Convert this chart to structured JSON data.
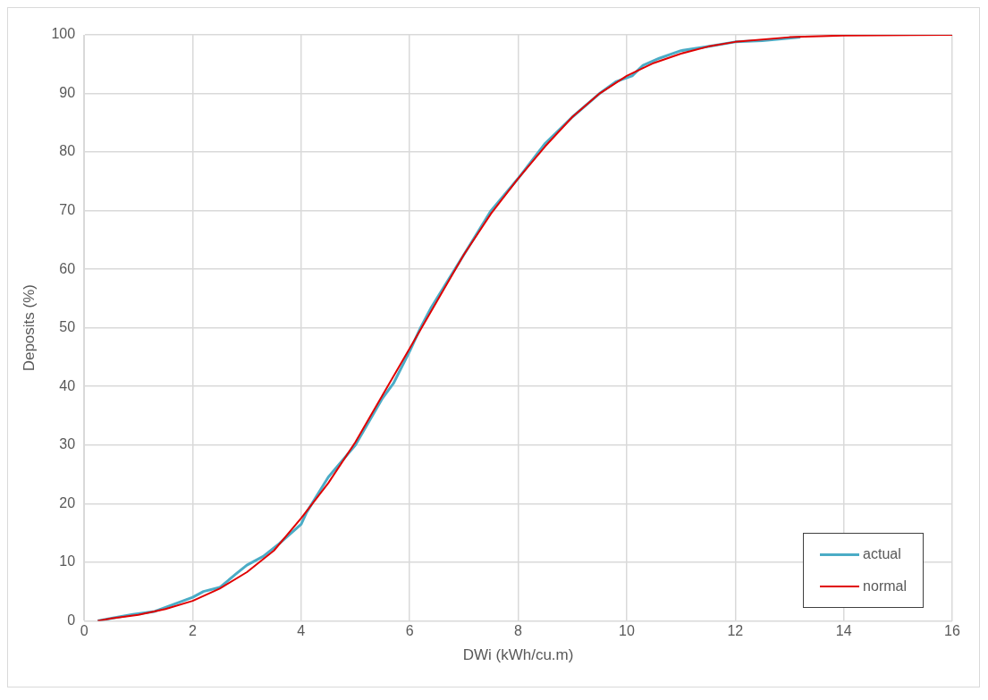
{
  "chart_data": {
    "type": "line",
    "xlabel": "DWi (kWh/cu.m)",
    "ylabel": "Deposits (%)",
    "xlim": [
      0,
      16
    ],
    "xticks": [
      0,
      2,
      4,
      6,
      8,
      10,
      12,
      14,
      16
    ],
    "ylim": [
      0,
      100
    ],
    "yticks": [
      0,
      10,
      20,
      30,
      40,
      50,
      60,
      70,
      80,
      90,
      100
    ],
    "grid": true,
    "legend": "bottom right",
    "marker": "none",
    "line_style": "solid",
    "series": [
      {
        "name": "actual",
        "color": "#4bacc6",
        "x": [
          0.25,
          0.6,
          0.9,
          1.3,
          1.5,
          2,
          2.2,
          2.5,
          2.8,
          3,
          3.3,
          3.6,
          4,
          4.1,
          4.5,
          5,
          5.5,
          5.7,
          6,
          6.2,
          6.4,
          7,
          7.5,
          8,
          8.5,
          9,
          9.5,
          9.8,
          10.1,
          10.3,
          10.6,
          11,
          11.5,
          12,
          12.5,
          13.2
        ],
        "values": [
          0,
          0.6,
          1.1,
          1.6,
          2.3,
          4,
          5,
          5.7,
          8,
          9.5,
          11,
          13.2,
          16.5,
          18.5,
          24.5,
          30,
          38,
          40.5,
          46,
          50,
          53.5,
          62.5,
          70,
          75.5,
          81.5,
          86,
          90,
          92,
          93,
          94.8,
          96,
          97.3,
          98,
          98.8,
          99,
          99.6
        ]
      },
      {
        "name": "normal",
        "color": "#e00000",
        "x": [
          0.25,
          0.5,
          1,
          1.5,
          2,
          2.5,
          3,
          3.5,
          4,
          4.5,
          5,
          5.5,
          6,
          6.5,
          7,
          7.5,
          8,
          8.5,
          9,
          9.5,
          10,
          10.5,
          11,
          11.5,
          12,
          13,
          14,
          16
        ],
        "values": [
          0,
          0.4,
          1,
          2,
          3.4,
          5.5,
          8.3,
          12,
          17.5,
          23.5,
          30.5,
          38.5,
          46.5,
          54.5,
          62.5,
          69.5,
          75.5,
          81,
          86,
          90,
          93,
          95.2,
          96.8,
          98,
          98.8,
          99.6,
          99.9,
          100
        ]
      }
    ]
  }
}
